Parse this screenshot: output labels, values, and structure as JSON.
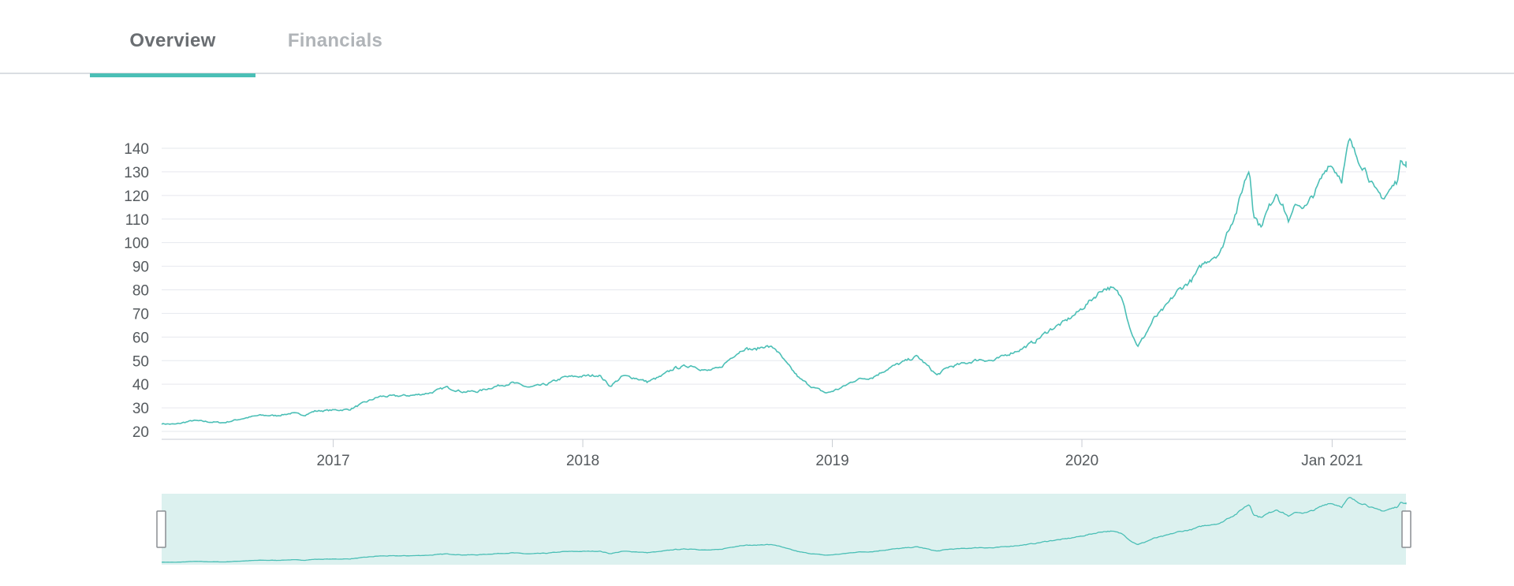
{
  "tabs": [
    {
      "label": "Overview",
      "active": true
    },
    {
      "label": "Financials",
      "active": false
    }
  ],
  "colors": {
    "line": "#4bbfb6",
    "navigator_fill": "#dcf1ef",
    "grid": "#e6e8ee",
    "tick_text": "#555a5e",
    "tab_active_underline": "#4bbfb6"
  },
  "chart_data": {
    "type": "line",
    "title": "",
    "xlabel": "",
    "ylabel": "",
    "ylim": [
      20,
      140
    ],
    "xlim": [
      "2016-04-25",
      "2021-04-19"
    ],
    "y_ticks": [
      "20",
      "30",
      "40",
      "50",
      "60",
      "70",
      "80",
      "90",
      "100",
      "110",
      "120",
      "130",
      "140"
    ],
    "x_ticks": [
      {
        "date": "2017-01-01",
        "label": "2017"
      },
      {
        "date": "2018-01-01",
        "label": "2018"
      },
      {
        "date": "2019-01-01",
        "label": "2019"
      },
      {
        "date": "2020-01-01",
        "label": "2020"
      },
      {
        "date": "2021-01-01",
        "label": "Jan 2021"
      }
    ],
    "grid": true,
    "legend": "none",
    "navigator": true,
    "series": [
      {
        "points": [
          [
            "2016-04-25",
            23.3
          ],
          [
            "2016-05-15",
            23.0
          ],
          [
            "2016-06-10",
            24.6
          ],
          [
            "2016-07-05",
            24.0
          ],
          [
            "2016-07-25",
            23.7
          ],
          [
            "2016-08-20",
            25.4
          ],
          [
            "2016-09-15",
            26.8
          ],
          [
            "2016-10-10",
            26.7
          ],
          [
            "2016-11-01",
            27.7
          ],
          [
            "2016-11-20",
            27.0
          ],
          [
            "2016-12-05",
            28.6
          ],
          [
            "2016-12-31",
            29.0
          ],
          [
            "2017-01-25",
            29.3
          ],
          [
            "2017-02-15",
            32.1
          ],
          [
            "2017-03-10",
            34.8
          ],
          [
            "2017-04-05",
            35.0
          ],
          [
            "2017-05-01",
            35.4
          ],
          [
            "2017-05-25",
            36.5
          ],
          [
            "2017-06-15",
            38.7
          ],
          [
            "2017-07-10",
            36.8
          ],
          [
            "2017-08-01",
            37.0
          ],
          [
            "2017-08-25",
            39.0
          ],
          [
            "2017-09-20",
            40.6
          ],
          [
            "2017-10-15",
            38.6
          ],
          [
            "2017-11-10",
            40.0
          ],
          [
            "2017-12-05",
            43.0
          ],
          [
            "2018-01-01",
            43.4
          ],
          [
            "2018-01-25",
            43.9
          ],
          [
            "2018-02-10",
            39.2
          ],
          [
            "2018-03-01",
            43.5
          ],
          [
            "2018-03-20",
            42.6
          ],
          [
            "2018-04-05",
            41.0
          ],
          [
            "2018-04-25",
            43.2
          ],
          [
            "2018-05-15",
            46.8
          ],
          [
            "2018-06-10",
            48.0
          ],
          [
            "2018-07-01",
            45.6
          ],
          [
            "2018-07-20",
            46.7
          ],
          [
            "2018-08-10",
            52.3
          ],
          [
            "2018-08-25",
            55.2
          ],
          [
            "2018-09-10",
            54.6
          ],
          [
            "2018-09-25",
            56.3
          ],
          [
            "2018-10-10",
            55.0
          ],
          [
            "2018-10-25",
            49.0
          ],
          [
            "2018-11-15",
            42.1
          ],
          [
            "2018-12-05",
            38.5
          ],
          [
            "2018-12-24",
            36.2
          ],
          [
            "2019-01-15",
            38.6
          ],
          [
            "2019-02-05",
            42.0
          ],
          [
            "2019-03-01",
            43.0
          ],
          [
            "2019-03-25",
            46.9
          ],
          [
            "2019-04-15",
            49.4
          ],
          [
            "2019-05-05",
            51.8
          ],
          [
            "2019-05-15",
            49.2
          ],
          [
            "2019-06-03",
            43.8
          ],
          [
            "2019-06-20",
            47.3
          ],
          [
            "2019-07-15",
            48.9
          ],
          [
            "2019-08-05",
            50.6
          ],
          [
            "2019-08-25",
            49.9
          ],
          [
            "2019-09-15",
            52.8
          ],
          [
            "2019-10-05",
            55.0
          ],
          [
            "2019-10-25",
            58.3
          ],
          [
            "2019-11-15",
            63.1
          ],
          [
            "2019-12-05",
            66.1
          ],
          [
            "2019-12-25",
            70.2
          ],
          [
            "2020-01-15",
            75.8
          ],
          [
            "2020-02-01",
            80.5
          ],
          [
            "2020-02-12",
            80.9
          ],
          [
            "2020-02-21",
            79.0
          ],
          [
            "2020-03-02",
            75.4
          ],
          [
            "2020-03-09",
            66.5
          ],
          [
            "2020-03-16",
            60.2
          ],
          [
            "2020-03-23",
            56.1
          ],
          [
            "2020-04-01",
            60.1
          ],
          [
            "2020-04-15",
            67.6
          ],
          [
            "2020-05-01",
            72.1
          ],
          [
            "2020-05-20",
            79.5
          ],
          [
            "2020-06-10",
            84.2
          ],
          [
            "2020-06-25",
            90.6
          ],
          [
            "2020-07-10",
            94.0
          ],
          [
            "2020-07-22",
            95.9
          ],
          [
            "2020-08-01",
            104.9
          ],
          [
            "2020-08-15",
            114.0
          ],
          [
            "2020-08-25",
            125.1
          ],
          [
            "2020-09-02",
            131.4
          ],
          [
            "2020-09-08",
            112.8
          ],
          [
            "2020-09-18",
            106.8
          ],
          [
            "2020-10-01",
            115.0
          ],
          [
            "2020-10-12",
            122.0
          ],
          [
            "2020-10-30",
            108.9
          ],
          [
            "2020-11-10",
            116.3
          ],
          [
            "2020-11-25",
            115.2
          ],
          [
            "2020-12-10",
            123.1
          ],
          [
            "2020-12-28",
            134.0
          ],
          [
            "2021-01-15",
            127.2
          ],
          [
            "2021-01-26",
            143.2
          ],
          [
            "2021-02-05",
            136.8
          ],
          [
            "2021-02-20",
            130.8
          ],
          [
            "2021-03-05",
            121.4
          ],
          [
            "2021-03-18",
            119.0
          ],
          [
            "2021-04-05",
            125.7
          ],
          [
            "2021-04-12",
            134.8
          ],
          [
            "2021-04-19",
            134.5
          ]
        ]
      }
    ]
  }
}
